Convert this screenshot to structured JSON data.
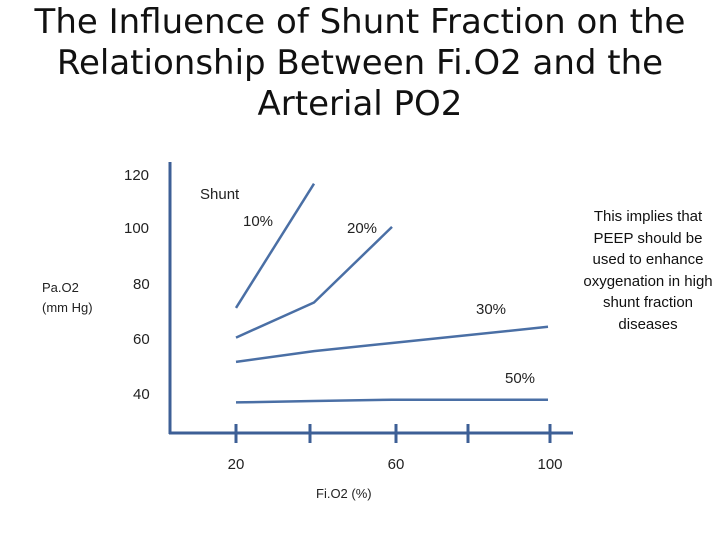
{
  "title": {
    "line1": "The Influence of Shunt Fraction on the",
    "line2": "Relationship Between Fi.O2 and the",
    "line3": "Arterial PO2"
  },
  "note": "This implies that PEEP should be used to enhance oxygenation in high shunt fraction diseases",
  "colors": {
    "series": "#4a6fa5",
    "axis": "#3d5f96"
  },
  "chart_data": {
    "type": "line",
    "title": "The Influence of Shunt Fraction on the Relationship Between Fi.O2 and the Arterial PO2",
    "xlabel": "Fi.O2 (%)",
    "ylabel_line1": "Pa.O2",
    "ylabel_line2": "(mm Hg)",
    "legend_title": "Shunt",
    "x_ticks": [
      "20",
      "60",
      "100"
    ],
    "y_ticks": [
      "120",
      "100",
      "80",
      "60",
      "40"
    ],
    "grid": false,
    "series": [
      {
        "name": "10%",
        "points": [
          [
            20,
            73
          ],
          [
            40,
            119
          ]
        ]
      },
      {
        "name": "20%",
        "points": [
          [
            20,
            62
          ],
          [
            40,
            75
          ],
          [
            60,
            103
          ]
        ]
      },
      {
        "name": "30%",
        "points": [
          [
            20,
            53
          ],
          [
            40,
            57
          ],
          [
            60,
            60
          ],
          [
            100,
            66
          ]
        ]
      },
      {
        "name": "50%",
        "points": [
          [
            20,
            38
          ],
          [
            40,
            38.5
          ],
          [
            60,
            39
          ],
          [
            100,
            39
          ]
        ]
      }
    ]
  }
}
